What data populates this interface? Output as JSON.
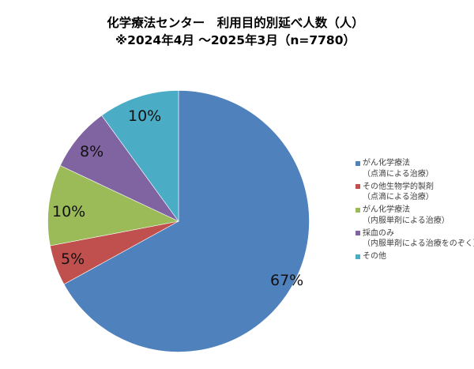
{
  "title": {
    "line1": "化学療法センター　利用目的別延べ人数（人）",
    "line2": "※2024年4月 〜2025年3月（n=7780）"
  },
  "legend": {
    "items": [
      {
        "label": "がん化学療法",
        "sub": "（点滴による治療）",
        "color": "#4f81bd"
      },
      {
        "label": "その他生物学的製剤",
        "sub": "（点滴による治療）",
        "color": "#c0504d"
      },
      {
        "label": "がん化学療法",
        "sub": "（内服単剤による治療）",
        "color": "#9bbb59"
      },
      {
        "label": "採血のみ",
        "sub": "（内服単剤による治療をのぞく）",
        "color": "#8064a2"
      },
      {
        "label": "その他",
        "sub": "",
        "color": "#4bacc6"
      }
    ]
  },
  "labels": {
    "s0": "67%",
    "s1": "5%",
    "s2": "10%",
    "s3": "8%",
    "s4": "10%"
  },
  "chart_data": {
    "type": "pie",
    "title": "化学療法センター　利用目的別延べ人数（人） ※2024年4月 〜2025年3月（n=7780）",
    "categories": [
      "がん化学療法（点滴による治療）",
      "その他生物学的製剤（点滴による治療）",
      "がん化学療法（内服単剤による治療）",
      "採血のみ（内服単剤による治療をのぞく）",
      "その他"
    ],
    "values": [
      67,
      5,
      10,
      8,
      10
    ],
    "unit": "%",
    "n": 7780,
    "colors": [
      "#4f81bd",
      "#c0504d",
      "#9bbb59",
      "#8064a2",
      "#4bacc6"
    ],
    "start_angle_deg": 0,
    "direction": "clockwise",
    "legend_position": "right"
  }
}
